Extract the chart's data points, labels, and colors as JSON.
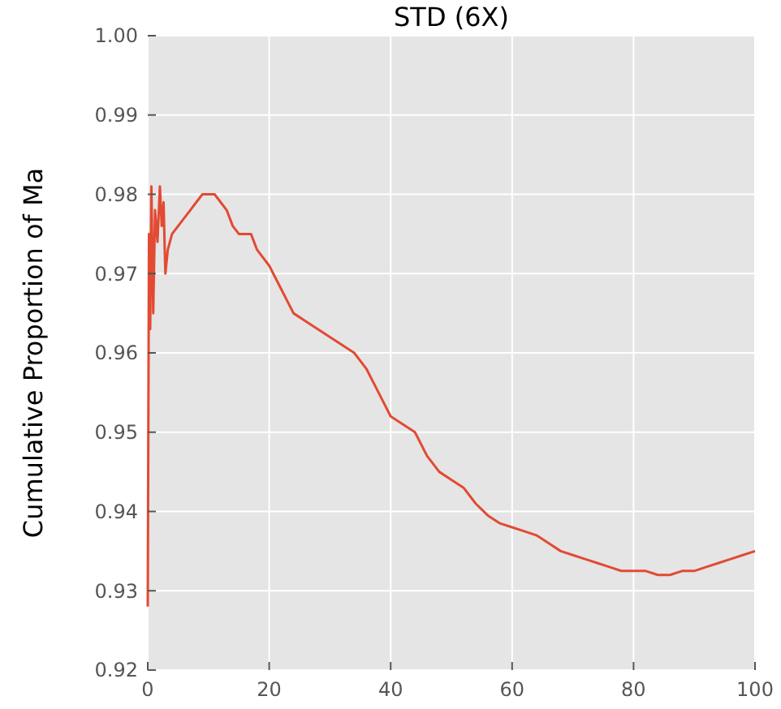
{
  "chart_data": {
    "type": "line",
    "title": "STD (6X)",
    "ylabel": "Cumulative Proportion of Ma",
    "xlim": [
      0,
      100
    ],
    "xticks": [
      0,
      20,
      40,
      60,
      80,
      100
    ],
    "ylim": [
      0.92,
      1.0
    ],
    "yticks": [
      {
        "value": 0.92,
        "label": "0.92"
      },
      {
        "value": 0.93,
        "label": "0.93"
      },
      {
        "value": 0.94,
        "label": "0.94"
      },
      {
        "value": 0.95,
        "label": "0.95"
      },
      {
        "value": 0.96,
        "label": "0.96"
      },
      {
        "value": 0.97,
        "label": "0.97"
      },
      {
        "value": 0.98,
        "label": "0.98"
      },
      {
        "value": 0.99,
        "label": "0.99"
      },
      {
        "value": 1.0,
        "label": "1.00"
      }
    ],
    "grid": true,
    "series": [
      {
        "color": "#e24a33",
        "x": [
          0,
          0.2,
          0.4,
          0.6,
          0.9,
          1.2,
          1.6,
          2.0,
          2.3,
          2.6,
          2.9,
          3.3,
          4,
          5,
          6,
          7,
          8,
          9,
          10,
          11,
          12,
          13,
          14,
          15,
          16,
          17,
          18,
          20,
          22,
          24,
          26,
          28,
          30,
          32,
          34,
          36,
          38,
          40,
          42,
          44,
          46,
          48,
          50,
          52,
          54,
          56,
          58,
          60,
          62,
          64,
          66,
          68,
          70,
          72,
          74,
          76,
          78,
          80,
          82,
          84,
          86,
          88,
          90,
          92,
          94,
          96,
          98,
          100
        ],
        "values": [
          0.928,
          0.975,
          0.963,
          0.981,
          0.965,
          0.978,
          0.974,
          0.981,
          0.976,
          0.979,
          0.97,
          0.973,
          0.975,
          0.976,
          0.977,
          0.978,
          0.979,
          0.98,
          0.98,
          0.98,
          0.979,
          0.978,
          0.976,
          0.975,
          0.975,
          0.975,
          0.973,
          0.971,
          0.968,
          0.965,
          0.964,
          0.963,
          0.962,
          0.961,
          0.96,
          0.958,
          0.955,
          0.952,
          0.951,
          0.95,
          0.947,
          0.945,
          0.944,
          0.943,
          0.941,
          0.9395,
          0.9385,
          0.938,
          0.9375,
          0.937,
          0.936,
          0.935,
          0.9345,
          0.934,
          0.9335,
          0.933,
          0.9325,
          0.9325,
          0.9325,
          0.932,
          0.932,
          0.9325,
          0.9325,
          0.933,
          0.9335,
          0.934,
          0.9345,
          0.935
        ]
      }
    ]
  }
}
